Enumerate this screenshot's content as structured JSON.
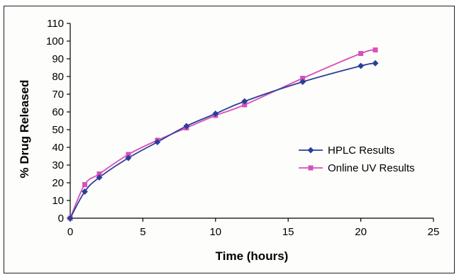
{
  "chart_data": {
    "type": "line",
    "title": "",
    "xlabel": "Time (hours)",
    "ylabel": "% Drug Released",
    "xlim": [
      0,
      25
    ],
    "ylim": [
      0,
      110
    ],
    "xticks": [
      0,
      5,
      10,
      15,
      20,
      25
    ],
    "yticks": [
      0,
      10,
      20,
      30,
      40,
      50,
      60,
      70,
      80,
      90,
      100,
      110
    ],
    "grid": false,
    "legend_position": "right",
    "series": [
      {
        "name": "HPLC Results",
        "color": "#2a3f9a",
        "marker": "diamond",
        "x": [
          0,
          1,
          2,
          4,
          6,
          8,
          10,
          12,
          16,
          20,
          21
        ],
        "y": [
          0,
          15,
          23,
          34,
          43,
          52,
          59,
          66,
          77,
          86,
          87.5
        ]
      },
      {
        "name": "Online UV Results",
        "color": "#d94fb8",
        "marker": "square",
        "x": [
          0,
          1,
          2,
          4,
          6,
          8,
          10,
          12,
          16,
          20,
          21
        ],
        "y": [
          0,
          19,
          25,
          36,
          44,
          51,
          58,
          64,
          79,
          93,
          95
        ]
      }
    ]
  }
}
